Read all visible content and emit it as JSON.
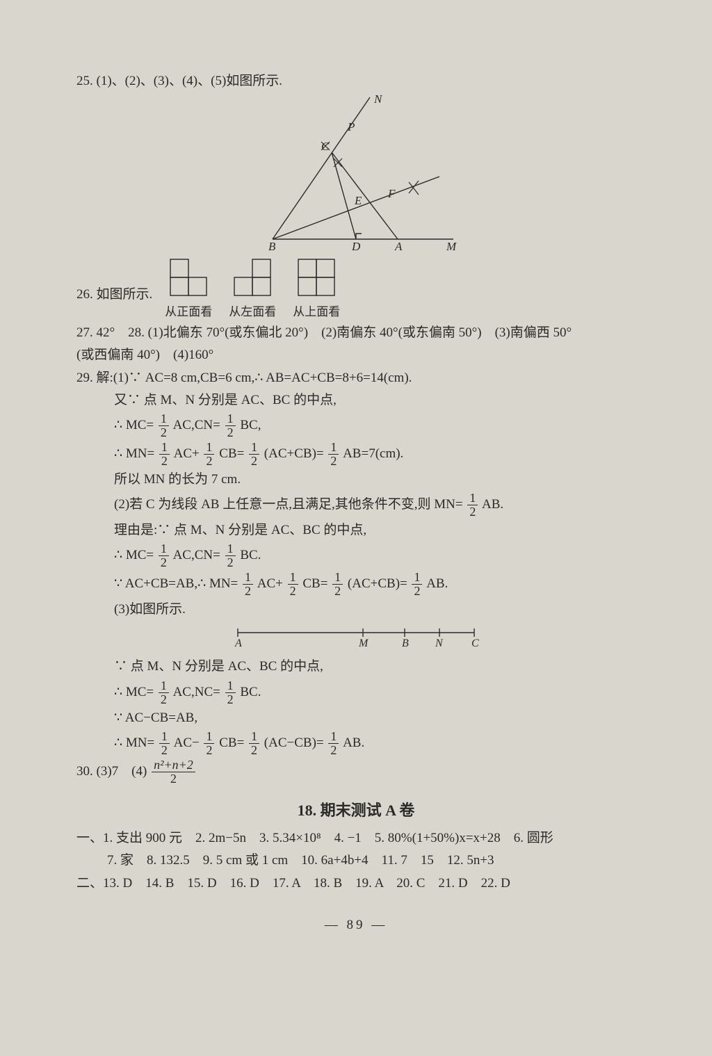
{
  "q25": {
    "text": "25. (1)、(2)、(3)、(4)、(5)如图所示."
  },
  "fig25": {
    "labels": {
      "N": "N",
      "P": "P",
      "C": "C",
      "E": "E",
      "F": "F",
      "B": "B",
      "D": "D",
      "A": "A",
      "M": "M"
    },
    "stroke": "#2a2a28",
    "stroke_width": 1.4
  },
  "q26": {
    "prefix": "26. 如图所示.",
    "views": [
      {
        "label": "从正面看",
        "w": 2,
        "h": 2,
        "cells": [
          [
            1,
            0
          ],
          [
            1,
            1
          ]
        ]
      },
      {
        "label": "从左面看",
        "w": 2,
        "h": 2,
        "cells": [
          [
            0,
            1
          ],
          [
            1,
            1
          ]
        ]
      },
      {
        "label": "从上面看",
        "w": 2,
        "h": 2,
        "cells": [
          [
            1,
            1
          ],
          [
            1,
            1
          ]
        ]
      }
    ],
    "cell_stroke": "#2a2a28"
  },
  "q27": {
    "text": "27. 42°　28. (1)北偏东 70°(或东偏北 20°)　(2)南偏东 40°(或东偏南 50°)　(3)南偏西 50°"
  },
  "q28b": {
    "text": "(或西偏南 40°)　(4)160°"
  },
  "q29": {
    "l1": "29. 解:(1)∵ AC=8 cm,CB=6 cm,∴ AB=AC+CB=8+6=14(cm).",
    "l2": "又∵ 点 M、N 分别是 AC、BC 的中点,",
    "l3a": "∴ MC=",
    "l3b": "AC,CN=",
    "l3c": "BC,",
    "l4a": "∴ MN=",
    "l4b": "AC+",
    "l4c": "CB=",
    "l4d": "(AC+CB)=",
    "l4e": "AB=7(cm).",
    "l5": "所以 MN 的长为 7 cm.",
    "l6a": "(2)若 C 为线段 AB 上任意一点,且满足,其他条件不变,则 MN=",
    "l6b": "AB.",
    "l7": "理由是:∵ 点 M、N 分别是 AC、BC 的中点,",
    "l8a": "∴ MC=",
    "l8b": "AC,CN=",
    "l8c": "BC.",
    "l9a": "∵ AC+CB=AB,∴ MN=",
    "l9b": "AC+",
    "l9c": "CB=",
    "l9d": "(AC+CB)=",
    "l9e": "AB.",
    "l10": "(3)如图所示.",
    "fig_labels": [
      "A",
      "M",
      "B",
      "N",
      "C"
    ],
    "l11": "∵ 点 M、N 分别是 AC、BC 的中点,",
    "l12a": "∴ MC=",
    "l12b": "AC,NC=",
    "l12c": "BC.",
    "l13": "∵ AC−CB=AB,",
    "l14a": "∴ MN=",
    "l14b": "AC−",
    "l14c": "CB=",
    "l14d": "(AC−CB)=",
    "l14e": "AB."
  },
  "q30": {
    "a": "30. (3)7　(4)",
    "num": "n²+n+2",
    "den": "2"
  },
  "heading": {
    "num": "18.",
    "text": "期末测试 A 卷"
  },
  "ans1": {
    "text": "一、1. 支出 900 元　2. 2m−5n　3. 5.34×10⁸　4. −1　5. 80%(1+50%)x=x+28　6. 圆形"
  },
  "ans1b": {
    "text": "7. 家　8. 132.5　9. 5 cm 或 1 cm　10. 6a+4b+4　11. 7　15　12. 5n+3"
  },
  "ans2": {
    "text": "二、13. D　14. B　15. D　16. D　17. A　18. B　19. A　20. C　21. D　22. D"
  },
  "page": "— 89 —",
  "half": {
    "num": "1",
    "den": "2"
  }
}
